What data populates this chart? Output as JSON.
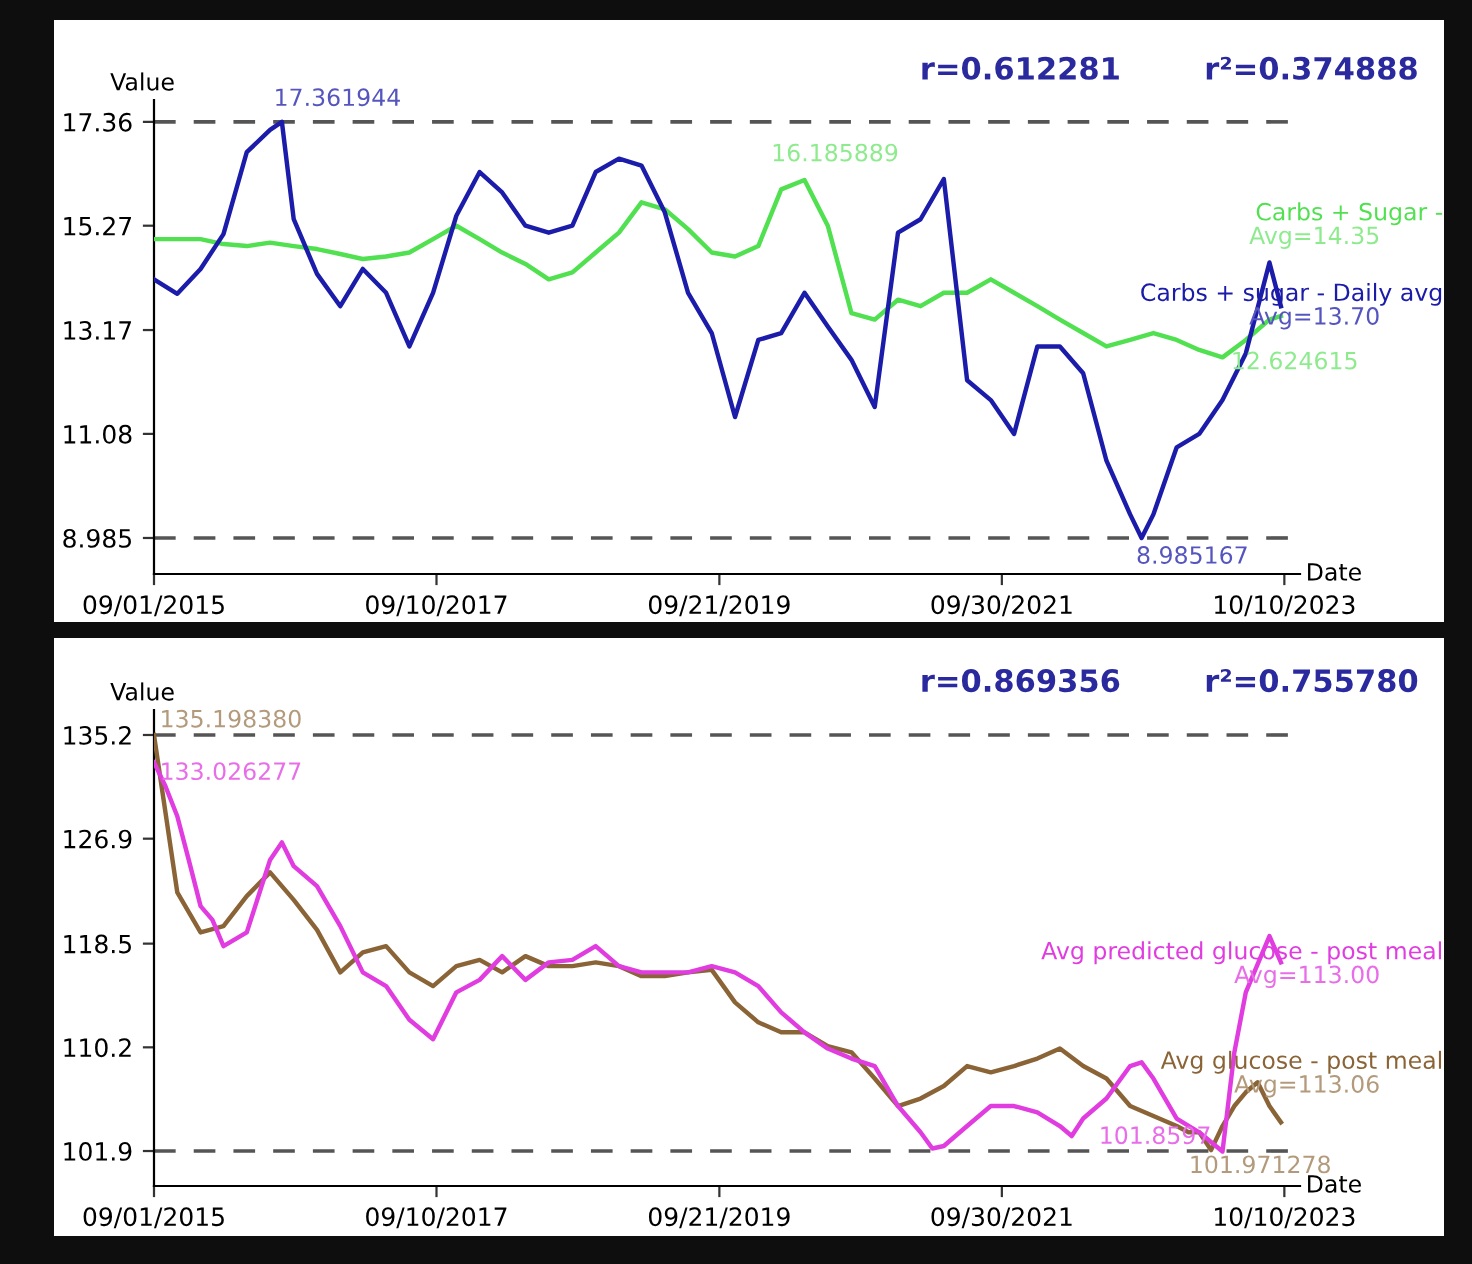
{
  "chart_data": [
    {
      "type": "line",
      "xlabel": "Date",
      "ylabel": "Value",
      "xlim": [
        "2015-09-01",
        "2023-11-20"
      ],
      "ylim": [
        8.26,
        17.8
      ],
      "xticks": [
        {
          "value": "2015-09-01",
          "label": "09/01/2015"
        },
        {
          "value": "2017-09-10",
          "label": "09/10/2017"
        },
        {
          "value": "2019-09-21",
          "label": "09/21/2019"
        },
        {
          "value": "2021-09-30",
          "label": "09/30/2021"
        },
        {
          "value": "2023-10-10",
          "label": "10/10/2023"
        }
      ],
      "yticks": [
        8.985,
        11.08,
        13.17,
        15.27,
        17.36
      ],
      "grid": false,
      "legend": false,
      "line_style": "solid",
      "marker": "none",
      "series": [
        {
          "name": "Carbs + Sugar -",
          "color": "#50e050",
          "x": [
            "2015-09-01",
            "2015-11-01",
            "2016-01-01",
            "2016-03-01",
            "2016-05-01",
            "2016-07-01",
            "2016-09-01",
            "2016-11-01",
            "2017-01-01",
            "2017-03-01",
            "2017-05-01",
            "2017-07-01",
            "2017-09-01",
            "2017-11-01",
            "2018-01-01",
            "2018-03-01",
            "2018-05-01",
            "2018-07-01",
            "2018-09-01",
            "2018-11-01",
            "2019-01-01",
            "2019-03-01",
            "2019-05-01",
            "2019-07-01",
            "2019-09-01",
            "2019-11-01",
            "2020-01-01",
            "2020-03-01",
            "2020-05-01",
            "2020-07-01",
            "2020-09-01",
            "2020-11-01",
            "2021-01-01",
            "2021-03-01",
            "2021-05-01",
            "2021-07-01",
            "2021-09-01",
            "2021-11-01",
            "2022-01-01",
            "2022-03-01",
            "2022-05-01",
            "2022-07-01",
            "2022-09-01",
            "2022-11-01",
            "2023-01-01",
            "2023-03-01",
            "2023-05-01",
            "2023-07-01",
            "2023-09-01",
            "2023-10-01"
          ],
          "values": [
            15.0,
            15.0,
            15.0,
            14.9,
            14.86,
            14.93,
            14.86,
            14.8,
            14.7,
            14.6,
            14.65,
            14.73,
            15.0,
            15.27,
            15.0,
            14.73,
            14.5,
            14.19,
            14.33,
            14.73,
            15.13,
            15.74,
            15.6,
            15.2,
            14.73,
            14.65,
            14.86,
            16.0,
            16.19,
            15.27,
            13.51,
            13.38,
            13.78,
            13.65,
            13.92,
            13.92,
            14.19,
            13.92,
            13.65,
            13.38,
            13.11,
            12.84,
            12.97,
            13.11,
            12.97,
            12.77,
            12.62,
            12.97,
            13.38,
            13.45
          ]
        },
        {
          "name": "Carbs + sugar - Daily avg",
          "color": "#1c1caa",
          "x": [
            "2015-09-01",
            "2015-11-01",
            "2016-01-01",
            "2016-03-01",
            "2016-05-01",
            "2016-07-01",
            "2016-08-01",
            "2016-09-01",
            "2016-11-01",
            "2017-01-01",
            "2017-03-01",
            "2017-05-01",
            "2017-07-01",
            "2017-09-01",
            "2017-11-01",
            "2018-01-01",
            "2018-03-01",
            "2018-05-01",
            "2018-07-01",
            "2018-09-01",
            "2018-11-01",
            "2019-01-01",
            "2019-03-01",
            "2019-05-01",
            "2019-07-01",
            "2019-09-01",
            "2019-11-01",
            "2020-01-01",
            "2020-03-01",
            "2020-05-01",
            "2020-07-01",
            "2020-09-01",
            "2020-11-01",
            "2021-01-01",
            "2021-03-01",
            "2021-05-01",
            "2021-07-01",
            "2021-09-01",
            "2021-11-01",
            "2022-01-01",
            "2022-03-01",
            "2022-05-01",
            "2022-07-01",
            "2022-09-01",
            "2022-10-01",
            "2022-11-01",
            "2023-01-01",
            "2023-03-01",
            "2023-05-01",
            "2023-07-01",
            "2023-09-01",
            "2023-10-01"
          ],
          "values": [
            14.19,
            13.9,
            14.4,
            15.1,
            16.75,
            17.2,
            17.36,
            15.4,
            14.3,
            13.65,
            14.4,
            13.92,
            12.84,
            13.92,
            15.47,
            16.35,
            15.94,
            15.27,
            15.13,
            15.27,
            16.35,
            16.62,
            16.48,
            15.54,
            13.92,
            13.11,
            11.42,
            12.97,
            13.11,
            13.92,
            13.24,
            12.57,
            11.62,
            15.13,
            15.4,
            16.21,
            12.16,
            11.76,
            11.08,
            12.84,
            12.84,
            12.3,
            10.54,
            9.46,
            8.985,
            9.46,
            10.81,
            11.08,
            11.76,
            12.7,
            14.53,
            13.65
          ]
        }
      ],
      "ref_lines": [
        {
          "axis": "y",
          "value": 17.36,
          "color": "#555555",
          "line_style": "dashed"
        },
        {
          "axis": "y",
          "value": 8.985,
          "color": "#555555",
          "line_style": "dashed"
        }
      ],
      "annotations": [
        "r=0.612281",
        "r²=0.374888",
        "Avg=14.35",
        "Avg=13.70",
        {
          "text": "17.361944",
          "x": "2016-08-01",
          "y": 17.36
        },
        {
          "text": "16.185889",
          "x": "2020-05-01",
          "y": 16.19
        },
        {
          "text": "8.985167",
          "x": "2022-10-01",
          "y": 8.985
        },
        {
          "text": "12.624615",
          "x": "2023-05-01",
          "y": 12.62
        }
      ]
    },
    {
      "type": "line",
      "xlabel": "Date",
      "ylabel": "Value",
      "xlim": [
        "2015-09-01",
        "2023-11-20"
      ],
      "ylim": [
        99.1,
        137.2
      ],
      "xticks": [
        {
          "value": "2015-09-01",
          "label": "09/01/2015"
        },
        {
          "value": "2017-09-10",
          "label": "09/10/2017"
        },
        {
          "value": "2019-09-21",
          "label": "09/21/2019"
        },
        {
          "value": "2021-09-30",
          "label": "09/30/2021"
        },
        {
          "value": "2023-10-10",
          "label": "10/10/2023"
        }
      ],
      "yticks": [
        101.9,
        110.2,
        118.5,
        126.9,
        135.2
      ],
      "grid": false,
      "legend": false,
      "line_style": "solid",
      "marker": "none",
      "series": [
        {
          "name": "Avg glucose - post meal",
          "color": "#8a6436",
          "x": [
            "2015-09-01",
            "2015-10-01",
            "2015-11-01",
            "2016-01-01",
            "2016-03-01",
            "2016-05-01",
            "2016-07-01",
            "2016-09-01",
            "2016-11-01",
            "2017-01-01",
            "2017-03-01",
            "2017-05-01",
            "2017-07-01",
            "2017-09-01",
            "2017-11-01",
            "2018-01-01",
            "2018-03-01",
            "2018-05-01",
            "2018-07-01",
            "2018-09-01",
            "2018-11-01",
            "2019-01-01",
            "2019-03-01",
            "2019-05-01",
            "2019-07-01",
            "2019-09-01",
            "2019-11-01",
            "2020-01-01",
            "2020-03-01",
            "2020-05-01",
            "2020-07-01",
            "2020-09-01",
            "2020-11-01",
            "2021-01-01",
            "2021-03-01",
            "2021-05-01",
            "2021-07-01",
            "2021-09-01",
            "2021-11-01",
            "2022-01-01",
            "2022-03-01",
            "2022-05-01",
            "2022-07-01",
            "2022-09-01",
            "2022-11-01",
            "2023-01-01",
            "2023-02-01",
            "2023-03-01",
            "2023-04-01",
            "2023-05-01",
            "2023-06-01",
            "2023-07-01",
            "2023-08-01",
            "2023-09-01",
            "2023-10-01"
          ],
          "values": [
            135.2,
            129.0,
            122.6,
            119.4,
            119.9,
            122.3,
            124.2,
            122.0,
            119.6,
            116.2,
            117.8,
            118.3,
            116.2,
            115.1,
            116.7,
            117.2,
            116.2,
            117.5,
            116.7,
            116.7,
            117.0,
            116.7,
            115.9,
            115.9,
            116.2,
            116.4,
            113.8,
            112.2,
            111.4,
            111.4,
            110.3,
            109.8,
            107.7,
            105.5,
            106.1,
            107.1,
            108.7,
            108.2,
            108.7,
            109.3,
            110.1,
            108.7,
            107.7,
            105.5,
            104.7,
            103.9,
            103.4,
            103.4,
            101.97,
            103.9,
            105.5,
            106.6,
            107.4,
            105.5,
            104.2
          ]
        },
        {
          "name": "Avg predicted glucose - post meal",
          "color": "#e03ce0",
          "x": [
            "2015-09-01",
            "2015-10-01",
            "2015-11-01",
            "2015-12-01",
            "2016-01-01",
            "2016-02-01",
            "2016-03-01",
            "2016-05-01",
            "2016-07-01",
            "2016-08-01",
            "2016-09-01",
            "2016-11-01",
            "2017-01-01",
            "2017-03-01",
            "2017-05-01",
            "2017-07-01",
            "2017-09-01",
            "2017-11-01",
            "2018-01-01",
            "2018-03-01",
            "2018-05-01",
            "2018-07-01",
            "2018-09-01",
            "2018-11-01",
            "2019-01-01",
            "2019-03-01",
            "2019-05-01",
            "2019-07-01",
            "2019-09-01",
            "2019-11-01",
            "2020-01-01",
            "2020-03-01",
            "2020-05-01",
            "2020-07-01",
            "2020-09-01",
            "2020-11-01",
            "2021-01-01",
            "2021-03-01",
            "2021-04-01",
            "2021-05-01",
            "2021-07-01",
            "2021-09-01",
            "2021-11-01",
            "2022-01-01",
            "2022-03-01",
            "2022-04-01",
            "2022-05-01",
            "2022-07-01",
            "2022-09-01",
            "2022-10-01",
            "2022-11-01",
            "2023-01-01",
            "2023-03-01",
            "2023-05-01",
            "2023-06-01",
            "2023-07-01",
            "2023-09-01",
            "2023-10-01"
          ],
          "values": [
            133.0,
            131.1,
            128.7,
            125.2,
            121.5,
            120.4,
            118.3,
            119.4,
            125.2,
            126.6,
            124.7,
            123.1,
            119.9,
            116.2,
            115.1,
            112.4,
            110.85,
            114.6,
            115.6,
            117.5,
            115.6,
            117.0,
            117.2,
            118.3,
            116.7,
            116.2,
            116.2,
            116.2,
            116.7,
            116.2,
            115.1,
            113.0,
            111.4,
            110.1,
            109.3,
            108.7,
            105.5,
            103.4,
            102.1,
            102.3,
            103.9,
            105.5,
            105.5,
            105.0,
            103.9,
            103.1,
            104.5,
            106.1,
            108.7,
            109.0,
            107.7,
            104.5,
            103.4,
            101.86,
            109.8,
            114.6,
            119.1,
            117.0
          ]
        }
      ],
      "ref_lines": [
        {
          "axis": "y",
          "value": 135.2,
          "color": "#555555",
          "line_style": "dashed"
        },
        {
          "axis": "y",
          "value": 101.9,
          "color": "#555555",
          "line_style": "dashed"
        }
      ],
      "annotations": [
        "r=0.869356",
        "r²=0.755780",
        "Avg=113.06",
        "Avg=113.00",
        {
          "text": "135.198380",
          "x": "2015-09-01",
          "y": 135.2
        },
        {
          "text": "133.026277",
          "x": "2015-09-01",
          "y": 133.0
        },
        {
          "text": "101.8597",
          "x": "2023-05-01",
          "y": 101.86
        },
        {
          "text": "101.971278",
          "x": "2023-04-01",
          "y": 101.97
        }
      ]
    }
  ]
}
